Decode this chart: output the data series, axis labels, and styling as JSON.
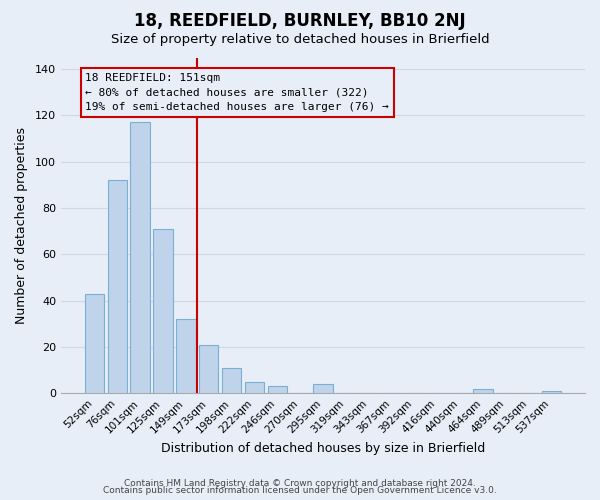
{
  "title": "18, REEDFIELD, BURNLEY, BB10 2NJ",
  "subtitle": "Size of property relative to detached houses in Brierfield",
  "xlabel": "Distribution of detached houses by size in Brierfield",
  "ylabel": "Number of detached properties",
  "bar_labels": [
    "52sqm",
    "76sqm",
    "101sqm",
    "125sqm",
    "149sqm",
    "173sqm",
    "198sqm",
    "222sqm",
    "246sqm",
    "270sqm",
    "295sqm",
    "319sqm",
    "343sqm",
    "367sqm",
    "392sqm",
    "416sqm",
    "440sqm",
    "464sqm",
    "489sqm",
    "513sqm",
    "537sqm"
  ],
  "bar_values": [
    43,
    92,
    117,
    71,
    32,
    21,
    11,
    5,
    3,
    0,
    4,
    0,
    0,
    0,
    0,
    0,
    0,
    2,
    0,
    0,
    1
  ],
  "bar_color": "#bfd4ea",
  "bar_edge_color": "#7aafd4",
  "ylim_max": 145,
  "yticks": [
    0,
    20,
    40,
    60,
    80,
    100,
    120,
    140
  ],
  "marker_index": 4,
  "marker_color": "#cc0000",
  "annotation_line1": "18 REEDFIELD: 151sqm",
  "annotation_line2": "← 80% of detached houses are smaller (322)",
  "annotation_line3": "19% of semi-detached houses are larger (76) →",
  "annotation_box_edge": "#cc0000",
  "bg_color": "#e8eef8",
  "grid_color": "#d0d8e8",
  "footer1": "Contains HM Land Registry data © Crown copyright and database right 2024.",
  "footer2": "Contains public sector information licensed under the Open Government Licence v3.0."
}
